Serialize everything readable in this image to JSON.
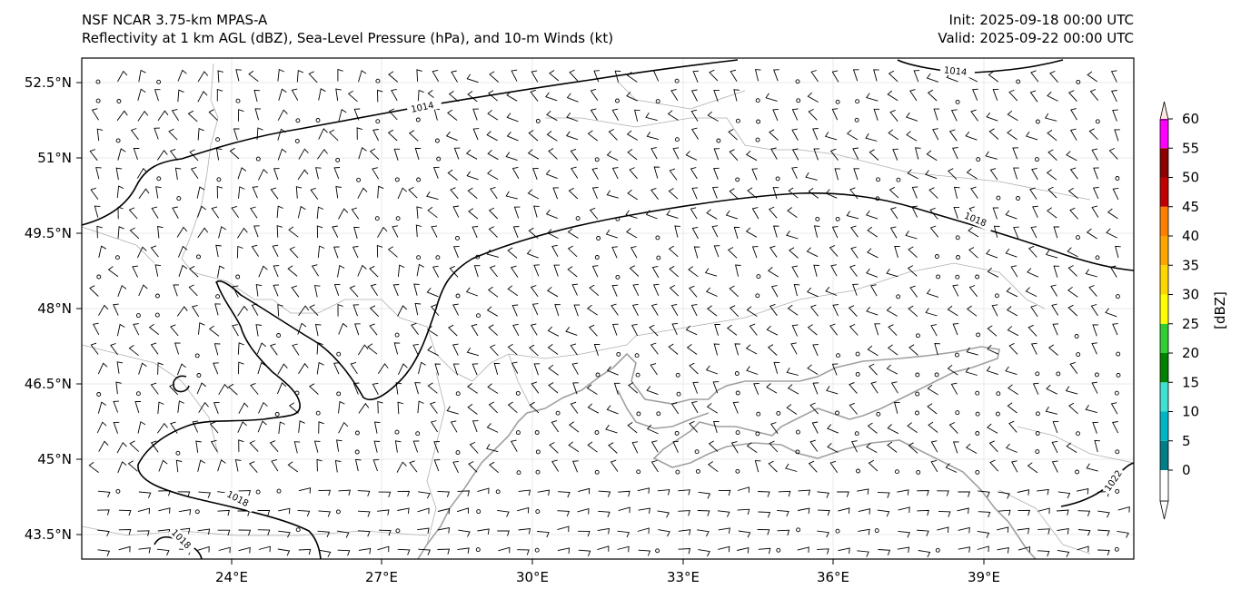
{
  "header": {
    "title_line1": "NSF NCAR 3.75-km MPAS-A",
    "title_line2": "Reflectivity at 1 km AGL (dBZ), Sea-Level Pressure (hPa), and 10-m Winds (kt)",
    "init": "Init: 2025-09-18 00:00 UTC",
    "valid": "Valid: 2025-09-22 00:00 UTC"
  },
  "axes": {
    "lat_labels": [
      "52.5°N",
      "51°N",
      "49.5°N",
      "48°N",
      "46.5°N",
      "45°N",
      "43.5°N"
    ],
    "lon_labels": [
      "24°E",
      "27°E",
      "30°E",
      "33°E",
      "36°E",
      "39°E"
    ]
  },
  "colorbar": {
    "label": "[dBZ]",
    "ticks": [
      "0",
      "5",
      "10",
      "15",
      "20",
      "25",
      "30",
      "35",
      "40",
      "45",
      "50",
      "55",
      "60"
    ],
    "colors": [
      "#ffffff",
      "#007d86",
      "#00b5c5",
      "#40e0d0",
      "#008000",
      "#32cd32",
      "#ffff00",
      "#ffd700",
      "#ffa500",
      "#ff7f00",
      "#c00000",
      "#8b0000",
      "#ff00ff",
      "#fde8e0"
    ]
  },
  "contours": {
    "labels": [
      "1014",
      "1014",
      "1018",
      "1018",
      "1018",
      "1022"
    ]
  },
  "colors": {
    "contour": "#000000",
    "coast": "#a0a0a0",
    "border": "#b0b0b0",
    "barb": "#000000"
  }
}
